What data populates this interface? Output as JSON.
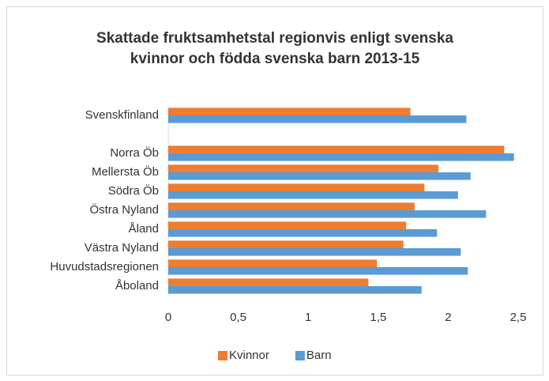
{
  "chart_data": {
    "type": "barh",
    "title": "Skattade fruktsamhetstal regionvis enligt svenska kvinnor och födda svenska barn 2013-15",
    "categories": [
      "Svenskfinland",
      null,
      "Norra Öb",
      "Mellersta Öb",
      "Södra Öb",
      "Östra Nyland",
      "Åland",
      "Västra Nyland",
      "Huvudstadsregionen",
      "Åboland"
    ],
    "series": [
      {
        "name": "Kvinnor",
        "color": "#ed7d31",
        "values": [
          1.73,
          null,
          2.4,
          1.93,
          1.83,
          1.76,
          1.7,
          1.68,
          1.49,
          1.43
        ]
      },
      {
        "name": "Barn",
        "color": "#5b9bd5",
        "values": [
          2.13,
          null,
          2.47,
          2.16,
          2.07,
          2.27,
          1.92,
          2.09,
          2.14,
          1.81
        ]
      }
    ],
    "xlim": [
      0,
      2.5
    ],
    "xticks": [
      0,
      {
        "value": 0.5,
        "label": "0,5"
      },
      1,
      {
        "value": 1.5,
        "label": "1,5"
      },
      2,
      {
        "value": 2.5,
        "label": "2,5"
      }
    ],
    "grid": false,
    "legend": "bottom"
  }
}
